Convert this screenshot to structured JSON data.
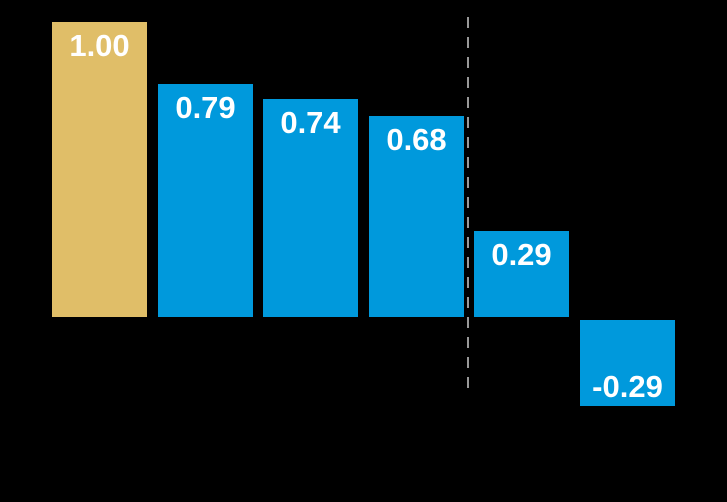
{
  "chart_data": {
    "type": "bar",
    "title": "",
    "categories": [
      "",
      "",
      "",
      "",
      "",
      ""
    ],
    "values": [
      1.0,
      0.79,
      0.74,
      0.68,
      0.29,
      -0.29
    ],
    "labels": [
      "1.00",
      "0.79",
      "0.74",
      "0.68",
      "0.29",
      "-0.29"
    ],
    "bar_colors": [
      "#E0BE68",
      "#0099DC",
      "#0099DC",
      "#0099DC",
      "#0099DC",
      "#0099DC"
    ],
    "label_color": "#FFFFFF",
    "background_color": "#000000",
    "ylim": [
      -0.35,
      1.0
    ],
    "baseline": 0,
    "grid": "off",
    "legend": "off",
    "axes_visible": false,
    "separator": {
      "after_index": 3,
      "style": "dashed",
      "color": "#999999"
    }
  }
}
